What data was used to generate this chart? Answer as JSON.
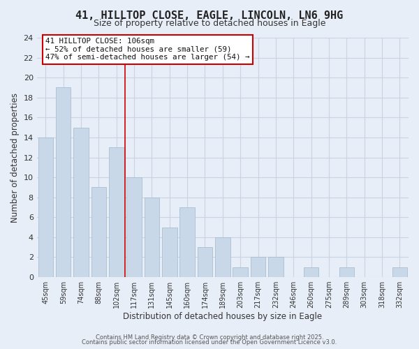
{
  "title": "41, HILLTOP CLOSE, EAGLE, LINCOLN, LN6 9HG",
  "subtitle": "Size of property relative to detached houses in Eagle",
  "xlabel": "Distribution of detached houses by size in Eagle",
  "ylabel": "Number of detached properties",
  "bar_color": "#c8d8e8",
  "bar_edge_color": "#a0b8cc",
  "categories": [
    "45sqm",
    "59sqm",
    "74sqm",
    "88sqm",
    "102sqm",
    "117sqm",
    "131sqm",
    "145sqm",
    "160sqm",
    "174sqm",
    "189sqm",
    "203sqm",
    "217sqm",
    "232sqm",
    "246sqm",
    "260sqm",
    "275sqm",
    "289sqm",
    "303sqm",
    "318sqm",
    "332sqm"
  ],
  "values": [
    14,
    19,
    15,
    9,
    13,
    10,
    8,
    5,
    7,
    3,
    4,
    1,
    2,
    2,
    0,
    1,
    0,
    1,
    0,
    0,
    1
  ],
  "ylim": [
    0,
    24
  ],
  "yticks": [
    0,
    2,
    4,
    6,
    8,
    10,
    12,
    14,
    16,
    18,
    20,
    22,
    24
  ],
  "vline_x": 4.5,
  "vline_color": "#cc0000",
  "annotation_title": "41 HILLTOP CLOSE: 106sqm",
  "annotation_line2": "← 52% of detached houses are smaller (59)",
  "annotation_line3": "47% of semi-detached houses are larger (54) →",
  "annotation_box_color": "#ffffff",
  "annotation_box_edge": "#cc0000",
  "grid_color": "#c8d4e4",
  "bg_color": "#e8eef8",
  "footer1": "Contains HM Land Registry data © Crown copyright and database right 2025.",
  "footer2": "Contains public sector information licensed under the Open Government Licence v3.0."
}
